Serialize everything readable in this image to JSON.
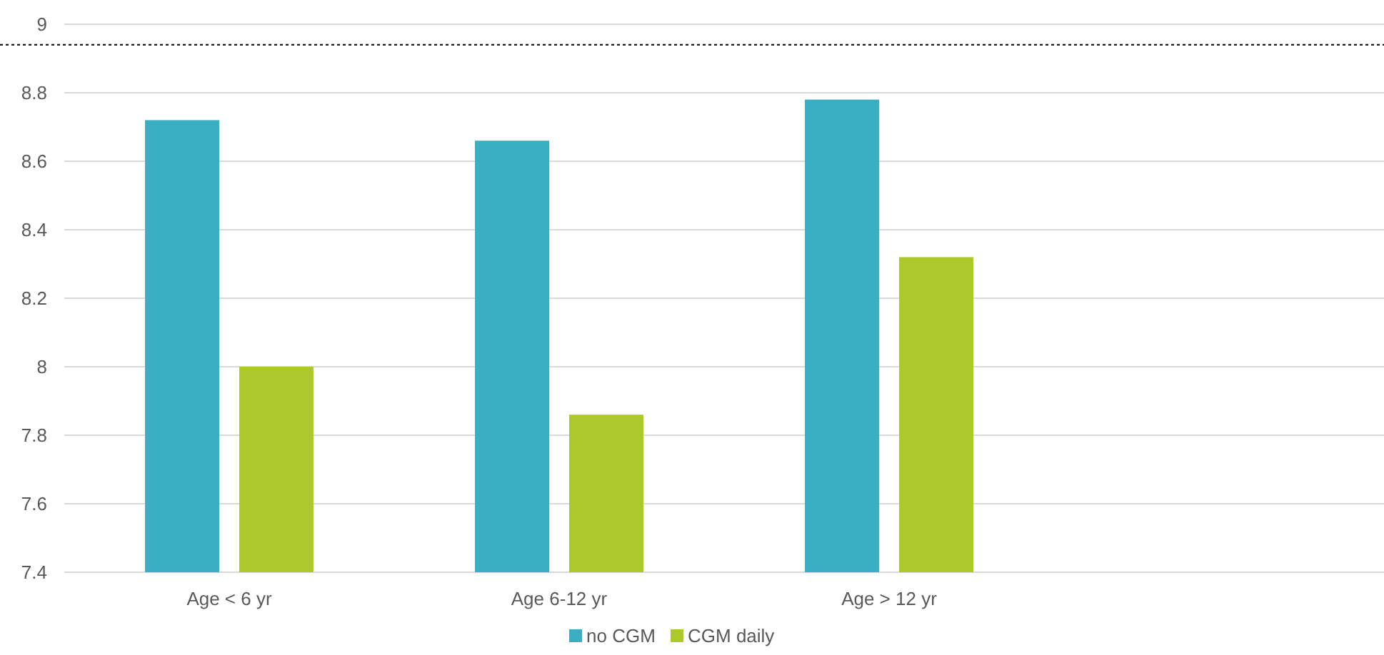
{
  "chart_data": {
    "type": "bar",
    "categories": [
      "Age < 6 yr",
      "Age 6-12 yr",
      "Age > 12 yr",
      null
    ],
    "series": [
      {
        "name": "no CGM",
        "color": "#3aafc3",
        "values": [
          8.72,
          8.66,
          8.78,
          null
        ]
      },
      {
        "name": "CGM daily",
        "color": "#acc92b",
        "values": [
          8.0,
          7.86,
          8.32,
          null
        ]
      }
    ],
    "ylim": [
      7.4,
      9
    ],
    "yticks": [
      7.4,
      7.6,
      7.8,
      8,
      8.2,
      8.4,
      8.6,
      8.8,
      9
    ],
    "grid": "y",
    "legend": "bottom",
    "ref_lines": [
      {
        "axis": "y",
        "value": 8.94,
        "color": "#000000",
        "line_style": "dotted"
      }
    ]
  }
}
